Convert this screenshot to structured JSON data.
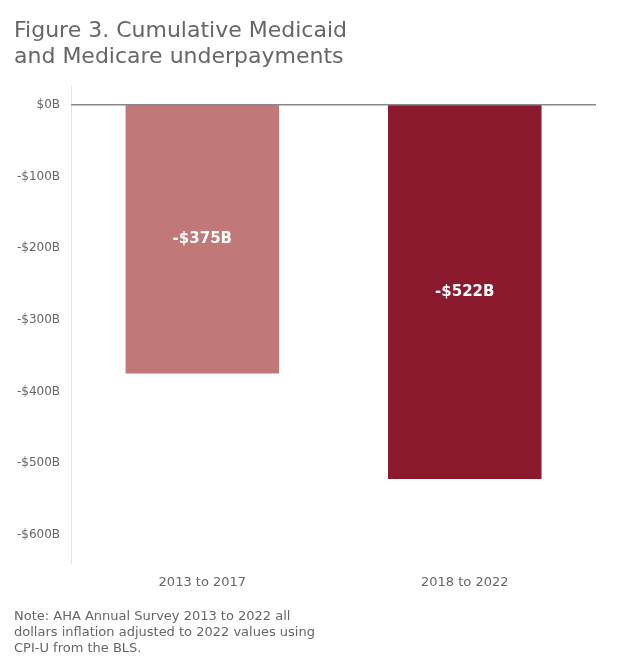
{
  "chart_data": {
    "type": "bar",
    "title": "Figure 3. Cumulative Medicaid\nand Medicare underpayments",
    "categories": [
      "2013 to 2017",
      "2018 to 2022"
    ],
    "values": [
      -375,
      -522
    ],
    "value_labels": [
      "-$375B",
      "-$522B"
    ],
    "data_labels": true,
    "colors": [
      "#C07878",
      "#8B1A2E"
    ],
    "ylim": [
      -640,
      25
    ],
    "yticks": [
      {
        "value": 0,
        "label": "$0B"
      },
      {
        "value": -100,
        "label": "-$100B"
      },
      {
        "value": -200,
        "label": "-$200B"
      },
      {
        "value": -300,
        "label": "-$300B"
      },
      {
        "value": -400,
        "label": "-$400B"
      },
      {
        "value": -500,
        "label": "-$500B"
      },
      {
        "value": -600,
        "label": "-$600B"
      }
    ],
    "grid": false,
    "annotations": [
      "Note: AHA Annual Survey 2013 to 2022 all\ndollars inflation adjusted to 2022 values using\nCPI-U from the BLS."
    ]
  }
}
